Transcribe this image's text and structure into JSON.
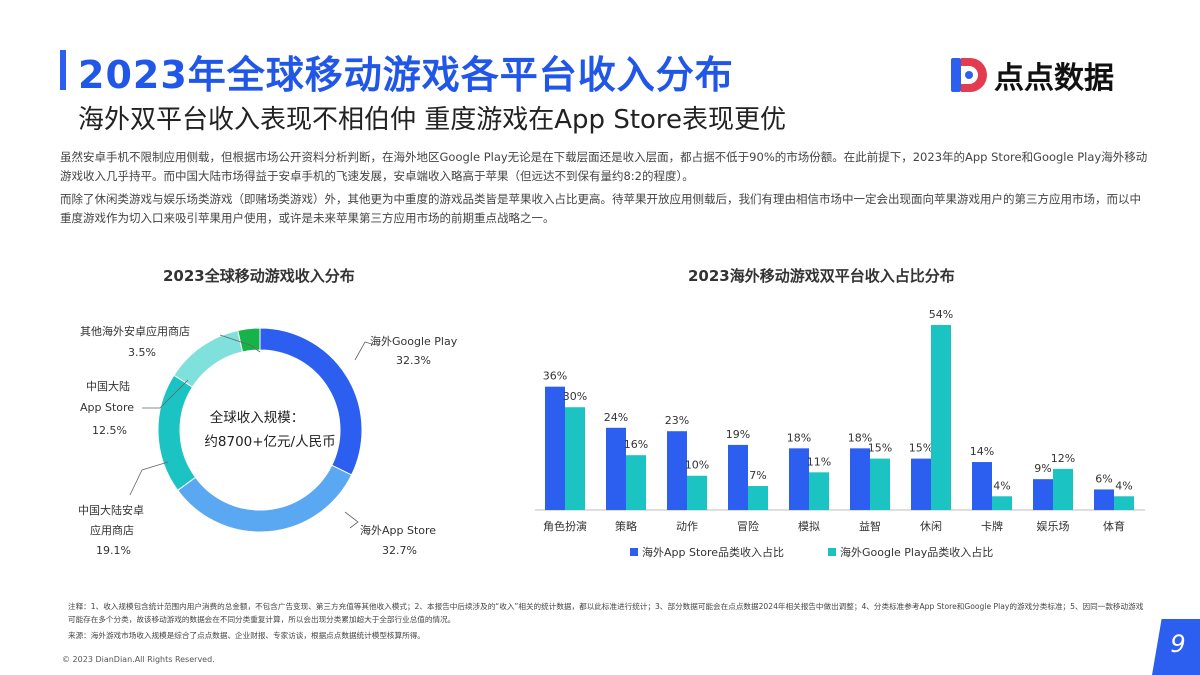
{
  "header": {
    "title": "2023年全球移动游戏各平台收入分布",
    "subtitle": "海外双平台收入表现不相伯仲 重度游戏在App Store表现更优",
    "logo_text": "点点数据"
  },
  "body": {
    "para1": "虽然安卓手机不限制应用侧载，但根据市场公开资料分析判断，在海外地区Google Play无论是在下载层面还是收入层面，都占据不低于90%的市场份额。在此前提下，2023年的App Store和Google Play海外移动游戏收入几乎持平。而中国大陆市场得益于安卓手机的飞速发展，安卓端收入略高于苹果（但远达不到保有量约8:2的程度）。",
    "para2": "而除了休闲类游戏与娱乐场类游戏（即赌场类游戏）外，其他更为中重度的游戏品类皆是苹果收入占比更高。待苹果开放应用侧载后，我们有理由相信市场中一定会出现面向苹果游戏用户的第三方应用市场，而以中重度游戏作为切入口来吸引苹果用户使用，或许是未来苹果第三方应用市场的前期重点战略之一。"
  },
  "chart_data": [
    {
      "type": "pie",
      "title": "2023全球移动游戏收入分布",
      "center_label_line1": "全球收入规模：",
      "center_label_line2": "约8700+亿元/人民币",
      "slices": [
        {
          "label": "海外Google Play",
          "value": 32.3,
          "value_label": "32.3%",
          "color": "#2c5ff0"
        },
        {
          "label": "海外App Store",
          "value": 32.7,
          "value_label": "32.7%",
          "color": "#5aa8f2"
        },
        {
          "label_line1": "中国大陆安卓",
          "label_line2": "应用商店",
          "label": "中国大陆安卓应用商店",
          "value": 19.1,
          "value_label": "19.1%",
          "color": "#1cc3c3"
        },
        {
          "label_line1": "中国大陆",
          "label_line2": "App Store",
          "label": "中国大陆App Store",
          "value": 12.5,
          "value_label": "12.5%",
          "color": "#7fe0dc"
        },
        {
          "label": "其他海外安卓应用商店",
          "value": 3.5,
          "value_label": "3.5%",
          "color": "#16b34a"
        }
      ]
    },
    {
      "type": "bar",
      "title": "2023海外移动游戏双平台收入占比分布",
      "categories": [
        "角色扮演",
        "策略",
        "动作",
        "冒险",
        "模拟",
        "益智",
        "休闲",
        "卡牌",
        "娱乐场",
        "体育"
      ],
      "series": [
        {
          "name": "海外App Store品类收入占比",
          "color": "#2c5ff0",
          "values": [
            36,
            24,
            23,
            19,
            18,
            18,
            15,
            14,
            9,
            6
          ]
        },
        {
          "name": "海外Google Play品类收入占比",
          "color": "#1cc3c3",
          "values": [
            30,
            16,
            10,
            7,
            11,
            15,
            54,
            4,
            12,
            4
          ]
        }
      ],
      "value_suffix": "%",
      "ylim": [
        0,
        54
      ]
    }
  ],
  "footer": {
    "note": "注释：1、收入规模包含统计范围内用户消费的总金额，不包含广告变现、第三方充值等其他收入模式；2、本报告中后续涉及的“收入”相关的统计数据，都以此标准进行统计；3、部分数据可能会在点点数据2024年相关报告中做出调整；4、分类标准参考App Store和Google Play的游戏分类标准；5、因同一款移动游戏可能存在多个分类，故该移动游戏的数据会在不同分类重复计算，所以会出现分类累加超大于全部行业总值的情况。",
    "source": "来源：海外游戏市场收入规模是综合了点点数据、企业财报、专家访谈，根据点点数据统计模型核算所得。",
    "copyright": "© 2023 DianDian.All Rights Reserved.",
    "page_number": "9"
  }
}
